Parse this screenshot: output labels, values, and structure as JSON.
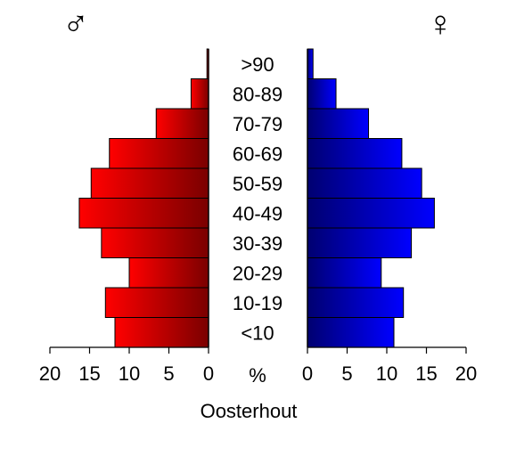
{
  "chart_data": {
    "type": "bar",
    "orientation": "horizontal",
    "subtype": "population-pyramid",
    "title": "Oosterhout",
    "categories": [
      "<10",
      "10-19",
      "20-29",
      "30-39",
      "40-49",
      "50-59",
      "60-69",
      "70-79",
      "80-89",
      ">90"
    ],
    "center_label": "%",
    "series": [
      {
        "symbol": "♂",
        "color": "#ff0000",
        "color_dark": "#7a0000",
        "side": "left",
        "values": [
          11.8,
          13.0,
          10.0,
          13.5,
          16.3,
          14.8,
          12.5,
          6.6,
          2.2,
          0.2
        ]
      },
      {
        "symbol": "♀",
        "color": "#0000ff",
        "color_dark": "#000070",
        "side": "right",
        "values": [
          10.9,
          12.1,
          9.3,
          13.1,
          16.0,
          14.4,
          11.9,
          7.7,
          3.6,
          0.7
        ]
      }
    ],
    "xlim": [
      0,
      20
    ],
    "ticks": [
      0,
      5,
      10,
      15,
      20
    ],
    "tick_labels_left": [
      "20",
      "15",
      "10",
      "5",
      "0"
    ],
    "tick_labels_right": [
      "0",
      "5",
      "10",
      "15",
      "20"
    ],
    "grid": false,
    "legend": "none"
  }
}
